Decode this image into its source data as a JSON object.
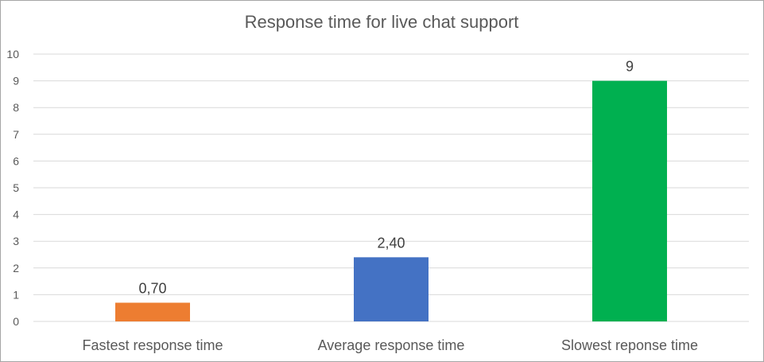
{
  "chart_data": {
    "type": "bar",
    "title": "Response time for live chat support",
    "xlabel": "",
    "ylabel": "",
    "categories": [
      "Fastest response time",
      "Average response time",
      "Slowest reponse time"
    ],
    "values": [
      0.7,
      2.4,
      9
    ],
    "data_labels": [
      "0,70",
      "2,40",
      "9"
    ],
    "colors": [
      "#ed7d31",
      "#4472c4",
      "#00b050"
    ],
    "ylim": [
      0,
      10
    ],
    "yticks": [
      0,
      1,
      2,
      3,
      4,
      5,
      6,
      7,
      8,
      9,
      10
    ],
    "grid": true,
    "legend": "none"
  }
}
